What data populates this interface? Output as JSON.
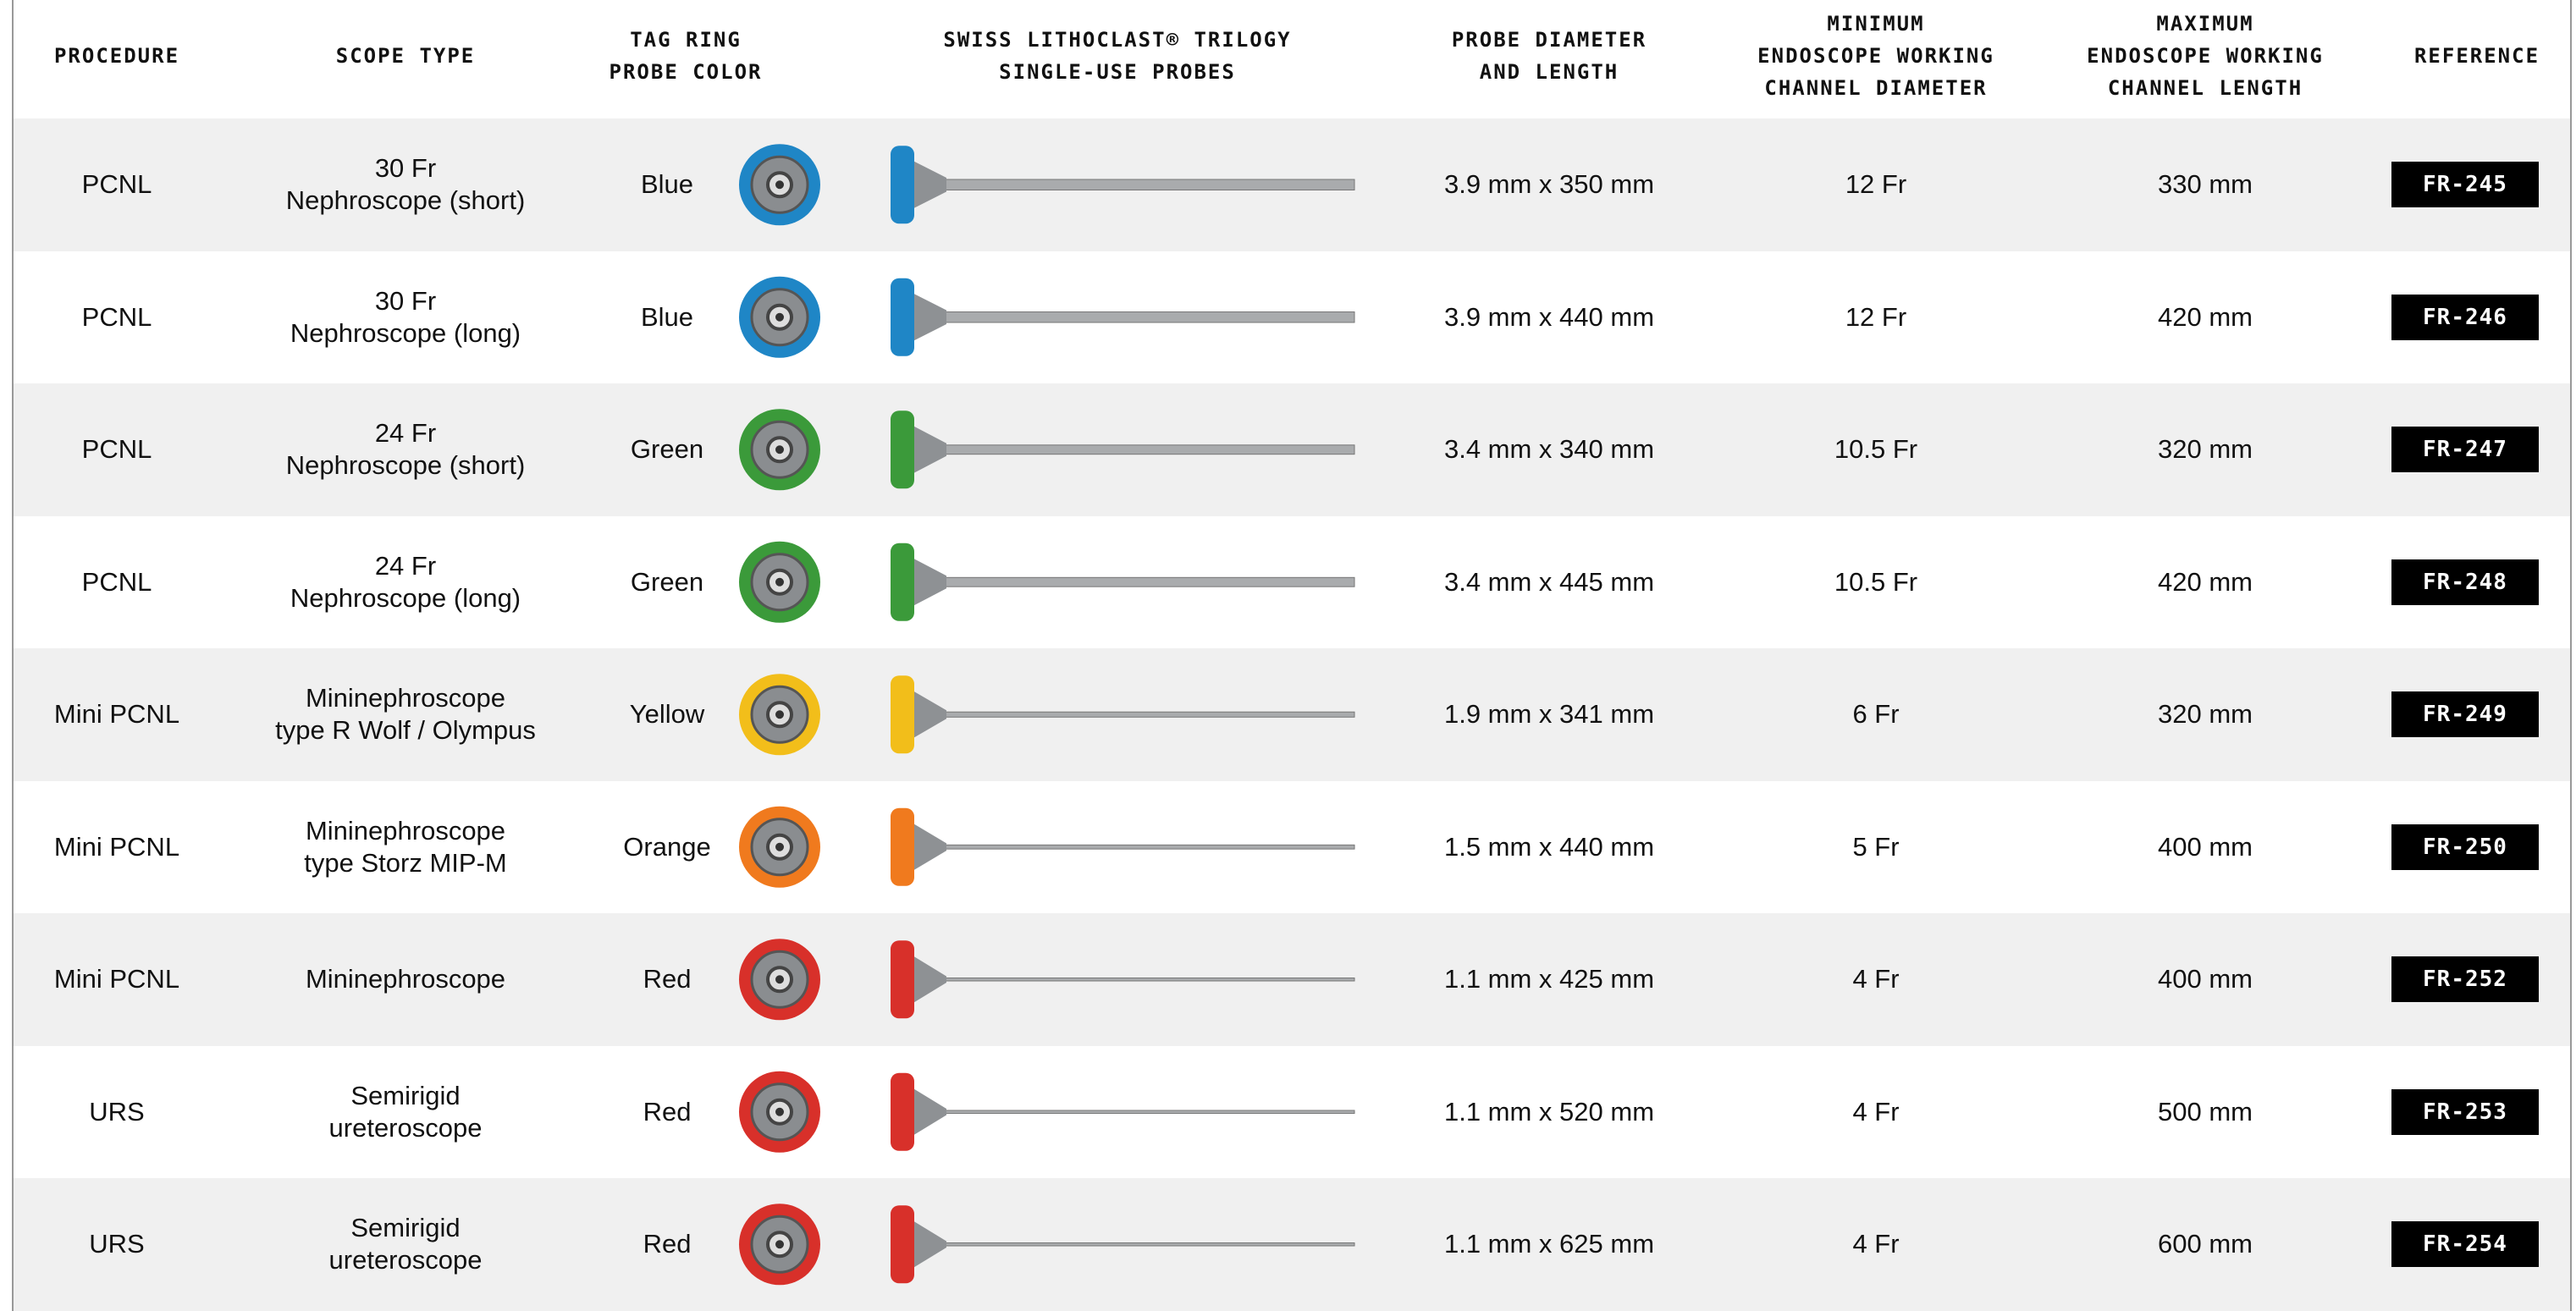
{
  "table": {
    "header": [
      "PROCEDURE",
      "SCOPE TYPE",
      "TAG RING\nPROBE COLOR",
      "SWISS LITHOCLAST® TRILOGY\nSINGLE-USE PROBES",
      "PROBE DIAMETER\nAND LENGTH",
      "MINIMUM\nENDOSCOPE WORKING\nCHANNEL DIAMETER",
      "MAXIMUM\nENDOSCOPE WORKING\nCHANNEL LENGTH",
      "REFERENCE"
    ],
    "rows": [
      {
        "procedure": "PCNL",
        "scope": "30 Fr\nNephroscope (short)",
        "color": "Blue",
        "ring_color": "#1f86c6",
        "diameter": "3.9 mm x 350 mm",
        "min": "12 Fr",
        "max": "330 mm",
        "ref": "FR-245"
      },
      {
        "procedure": "PCNL",
        "scope": "30 Fr\nNephroscope (long)",
        "color": "Blue",
        "ring_color": "#1f86c6",
        "diameter": "3.9 mm x 440 mm",
        "min": "12 Fr",
        "max": "420 mm",
        "ref": "FR-246"
      },
      {
        "procedure": "PCNL",
        "scope": "24 Fr\nNephroscope (short)",
        "color": "Green",
        "ring_color": "#3b9a3a",
        "diameter": "3.4 mm x 340 mm",
        "min": "10.5 Fr",
        "max": "320 mm",
        "ref": "FR-247"
      },
      {
        "procedure": "PCNL",
        "scope": "24 Fr\nNephroscope (long)",
        "color": "Green",
        "ring_color": "#3b9a3a",
        "diameter": "3.4 mm x 445 mm",
        "min": "10.5 Fr",
        "max": "420 mm",
        "ref": "FR-248"
      },
      {
        "procedure": "Mini PCNL",
        "scope": "Mininephroscope\ntype R Wolf / Olympus",
        "color": "Yellow",
        "ring_color": "#f2be1a",
        "diameter": "1.9 mm x 341 mm",
        "min": "6 Fr",
        "max": "320 mm",
        "ref": "FR-249"
      },
      {
        "procedure": "Mini PCNL",
        "scope": "Mininephroscope\ntype Storz MIP-M",
        "color": "Orange",
        "ring_color": "#f07a1e",
        "diameter": "1.5 mm x 440 mm",
        "min": "5 Fr",
        "max": "400 mm",
        "ref": "FR-250"
      },
      {
        "procedure": "Mini PCNL",
        "scope": "Mininephroscope",
        "color": "Red",
        "ring_color": "#d8302a",
        "diameter": "1.1 mm x 425 mm",
        "min": "4 Fr",
        "max": "400 mm",
        "ref": "FR-252"
      },
      {
        "procedure": "URS",
        "scope": "Semirigid\nureteroscope",
        "color": "Red",
        "ring_color": "#d8302a",
        "diameter": "1.1 mm x 520 mm",
        "min": "4 Fr",
        "max": "500 mm",
        "ref": "FR-253"
      },
      {
        "procedure": "URS",
        "scope": "Semirigid\nureteroscope",
        "color": "Red",
        "ring_color": "#d8302a",
        "diameter": "1.1 mm x 625 mm",
        "min": "4 Fr",
        "max": "600 mm",
        "ref": "FR-254"
      }
    ]
  }
}
